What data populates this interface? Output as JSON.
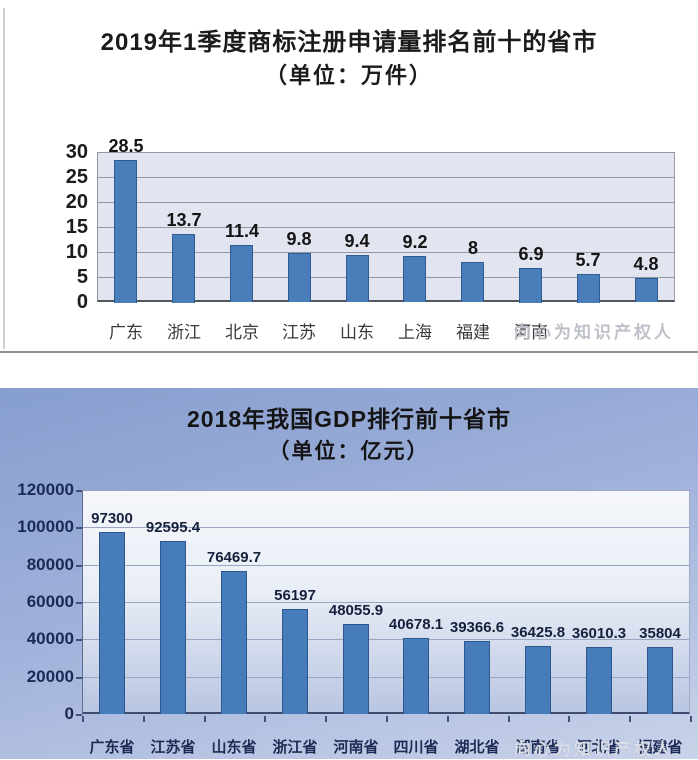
{
  "watermark": {
    "text": "向心为知识产权人"
  },
  "chart_data": [
    {
      "type": "bar",
      "title": "2019年1季度商标注册申请量排名前十的省市",
      "subtitle": "（单位：万件）",
      "unit": "万件",
      "categories": [
        "广东",
        "浙江",
        "北京",
        "江苏",
        "山东",
        "上海",
        "福建",
        "河南",
        "",
        ""
      ],
      "values": [
        28.5,
        13.7,
        11.4,
        9.8,
        9.4,
        9.2,
        8,
        6.9,
        5.7,
        4.8
      ],
      "value_labels": [
        "28.5",
        "13.7",
        "11.4",
        "9.8",
        "9.4",
        "9.2",
        "8",
        "6.9",
        "5.7",
        "4.8"
      ],
      "ylim": [
        0,
        30
      ],
      "yticks": [
        0,
        5,
        10,
        15,
        20,
        25,
        30
      ],
      "grid": true,
      "legend": "none",
      "bar_color": "#4a7ebb"
    },
    {
      "type": "bar",
      "title": "2018年我国GDP排行前十省市",
      "subtitle": "（单位：亿元）",
      "unit": "亿元",
      "categories": [
        "广东省",
        "江苏省",
        "山东省",
        "浙江省",
        "河南省",
        "四川省",
        "湖北省",
        "湖南省",
        "河北省",
        "福建省"
      ],
      "values": [
        97300,
        92595.4,
        76469.7,
        56197,
        48055.9,
        40678.1,
        39366.6,
        36425.8,
        36010.3,
        35804
      ],
      "value_labels": [
        "97300",
        "92595.4",
        "76469.7",
        "56197",
        "48055.9",
        "40678.1",
        "39366.6",
        "36425.8",
        "36010.3",
        "35804"
      ],
      "ylim": [
        0,
        120000
      ],
      "yticks": [
        0,
        20000,
        40000,
        60000,
        80000,
        100000,
        120000
      ],
      "grid": true,
      "legend": "none",
      "bar_color": "#477cba"
    }
  ]
}
